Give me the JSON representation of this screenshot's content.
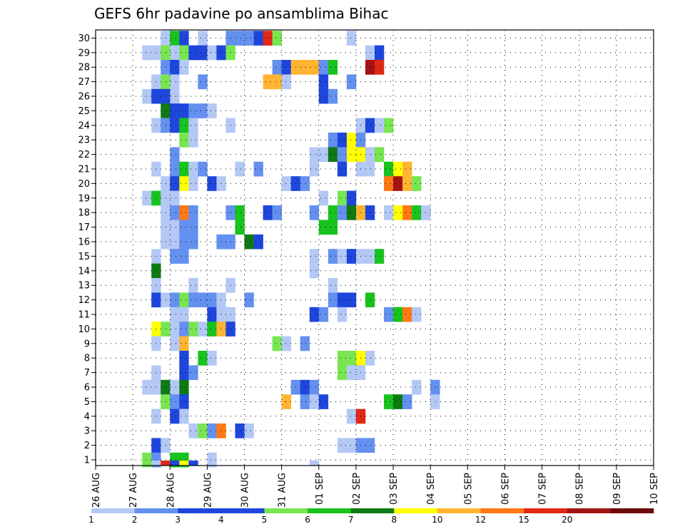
{
  "chart_data": {
    "type": "heatmap",
    "title": "GEFS 6hr padavine po ansamblima Bihac",
    "xlabel": "",
    "ylabel": "",
    "x_start": "26 AUG 00Z",
    "x_step_hours": 6,
    "x_tick_labels": [
      "26 AUG",
      "27 AUG",
      "28 AUG",
      "29 AUG",
      "30 AUG",
      "31 AUG",
      "01 SEP",
      "02 SEP",
      "03 SEP",
      "04 SEP",
      "05 SEP",
      "06 SEP",
      "07 SEP",
      "08 SEP",
      "09 SEP",
      "10 SEP"
    ],
    "y_tick_labels": [
      "1",
      "2",
      "3",
      "4",
      "5",
      "6",
      "7",
      "8",
      "9",
      "10",
      "11",
      "12",
      "13",
      "14",
      "15",
      "16",
      "17",
      "18",
      "19",
      "20",
      "21",
      "22",
      "23",
      "24",
      "25",
      "26",
      "27",
      "28",
      "29",
      "30"
    ],
    "grid": "dotted",
    "colorbar": {
      "labels": [
        "1",
        "2",
        "3",
        "4",
        "5",
        "6",
        "7",
        "8",
        "10",
        "12",
        "15",
        "20"
      ],
      "colors": [
        "#b4c8f5",
        "#6490f0",
        "#1e46dc",
        "#1e46dc",
        "#78e650",
        "#19c31e",
        "#0f7a14",
        "#ffff00",
        "#ffb432",
        "#ff7814",
        "#e12814",
        "#a51414",
        "#6e0a0a"
      ]
    },
    "cells": [
      [
        30,
        7,
        1
      ],
      [
        30,
        8,
        6
      ],
      [
        30,
        9,
        3
      ],
      [
        30,
        11,
        1
      ],
      [
        30,
        14,
        2
      ],
      [
        30,
        15,
        2
      ],
      [
        30,
        16,
        2
      ],
      [
        30,
        17,
        3
      ],
      [
        30,
        18,
        14
      ],
      [
        30,
        19,
        5
      ],
      [
        30,
        27,
        1
      ],
      [
        29,
        5,
        1
      ],
      [
        29,
        6,
        1
      ],
      [
        29,
        7,
        5
      ],
      [
        29,
        8,
        1
      ],
      [
        29,
        9,
        5
      ],
      [
        29,
        10,
        3
      ],
      [
        29,
        11,
        3
      ],
      [
        29,
        12,
        1
      ],
      [
        29,
        13,
        3
      ],
      [
        29,
        14,
        5
      ],
      [
        29,
        29,
        1
      ],
      [
        29,
        30,
        3
      ],
      [
        28,
        7,
        2
      ],
      [
        28,
        8,
        3
      ],
      [
        28,
        9,
        1
      ],
      [
        28,
        19,
        2
      ],
      [
        28,
        20,
        3
      ],
      [
        28,
        21,
        10
      ],
      [
        28,
        22,
        10
      ],
      [
        28,
        23,
        10
      ],
      [
        28,
        24,
        2
      ],
      [
        28,
        25,
        6
      ],
      [
        28,
        29,
        20
      ],
      [
        28,
        30,
        15
      ],
      [
        27,
        6,
        1
      ],
      [
        27,
        7,
        5
      ],
      [
        27,
        8,
        1
      ],
      [
        27,
        11,
        2
      ],
      [
        27,
        18,
        10
      ],
      [
        27,
        19,
        10
      ],
      [
        27,
        20,
        1
      ],
      [
        27,
        24,
        3
      ],
      [
        27,
        27,
        2
      ],
      [
        26,
        5,
        1
      ],
      [
        26,
        6,
        3
      ],
      [
        26,
        7,
        3
      ],
      [
        26,
        8,
        1
      ],
      [
        26,
        24,
        3
      ],
      [
        26,
        25,
        2
      ],
      [
        25,
        7,
        7
      ],
      [
        25,
        8,
        3
      ],
      [
        25,
        9,
        3
      ],
      [
        25,
        10,
        2
      ],
      [
        25,
        11,
        2
      ],
      [
        25,
        12,
        1
      ],
      [
        24,
        6,
        1
      ],
      [
        24,
        7,
        2
      ],
      [
        24,
        8,
        3
      ],
      [
        24,
        9,
        6
      ],
      [
        24,
        10,
        1
      ],
      [
        24,
        14,
        1
      ],
      [
        24,
        28,
        1
      ],
      [
        24,
        29,
        3
      ],
      [
        24,
        30,
        1
      ],
      [
        24,
        31,
        5
      ],
      [
        23,
        9,
        5
      ],
      [
        23,
        10,
        1
      ],
      [
        23,
        25,
        2
      ],
      [
        23,
        26,
        3
      ],
      [
        23,
        27,
        8
      ],
      [
        23,
        28,
        2
      ],
      [
        22,
        8,
        2
      ],
      [
        22,
        23,
        1
      ],
      [
        22,
        24,
        1
      ],
      [
        22,
        25,
        7
      ],
      [
        22,
        26,
        2
      ],
      [
        22,
        27,
        8
      ],
      [
        22,
        28,
        8
      ],
      [
        22,
        29,
        1
      ],
      [
        22,
        30,
        5
      ],
      [
        21,
        6,
        1
      ],
      [
        21,
        8,
        2
      ],
      [
        21,
        9,
        6
      ],
      [
        21,
        10,
        1
      ],
      [
        21,
        11,
        2
      ],
      [
        21,
        15,
        1
      ],
      [
        21,
        17,
        2
      ],
      [
        21,
        23,
        1
      ],
      [
        21,
        26,
        3
      ],
      [
        21,
        28,
        1
      ],
      [
        21,
        29,
        1
      ],
      [
        21,
        31,
        6
      ],
      [
        21,
        32,
        8
      ],
      [
        21,
        33,
        10
      ],
      [
        20,
        7,
        1
      ],
      [
        20,
        8,
        3
      ],
      [
        20,
        9,
        8
      ],
      [
        20,
        10,
        1
      ],
      [
        20,
        12,
        3
      ],
      [
        20,
        13,
        1
      ],
      [
        20,
        20,
        1
      ],
      [
        20,
        21,
        3
      ],
      [
        20,
        22,
        2
      ],
      [
        20,
        31,
        12
      ],
      [
        20,
        32,
        20
      ],
      [
        20,
        33,
        10
      ],
      [
        20,
        34,
        5
      ],
      [
        19,
        5,
        1
      ],
      [
        19,
        6,
        6
      ],
      [
        19,
        7,
        1
      ],
      [
        19,
        8,
        1
      ],
      [
        19,
        24,
        1
      ],
      [
        19,
        26,
        5
      ],
      [
        19,
        27,
        3
      ],
      [
        18,
        7,
        1
      ],
      [
        18,
        8,
        2
      ],
      [
        18,
        9,
        12
      ],
      [
        18,
        10,
        2
      ],
      [
        18,
        14,
        2
      ],
      [
        18,
        15,
        6
      ],
      [
        18,
        18,
        3
      ],
      [
        18,
        19,
        2
      ],
      [
        18,
        23,
        2
      ],
      [
        18,
        25,
        6
      ],
      [
        18,
        26,
        2
      ],
      [
        18,
        27,
        7
      ],
      [
        18,
        28,
        10
      ],
      [
        18,
        29,
        3
      ],
      [
        18,
        31,
        1
      ],
      [
        18,
        32,
        8
      ],
      [
        18,
        33,
        12
      ],
      [
        18,
        34,
        6
      ],
      [
        18,
        35,
        1
      ],
      [
        17,
        7,
        1
      ],
      [
        17,
        8,
        1
      ],
      [
        17,
        9,
        2
      ],
      [
        17,
        10,
        2
      ],
      [
        17,
        15,
        6
      ],
      [
        17,
        24,
        6
      ],
      [
        17,
        25,
        6
      ],
      [
        16,
        7,
        1
      ],
      [
        16,
        8,
        1
      ],
      [
        16,
        9,
        2
      ],
      [
        16,
        10,
        2
      ],
      [
        16,
        13,
        2
      ],
      [
        16,
        14,
        2
      ],
      [
        16,
        16,
        7
      ],
      [
        16,
        17,
        3
      ],
      [
        15,
        6,
        1
      ],
      [
        15,
        8,
        2
      ],
      [
        15,
        9,
        2
      ],
      [
        15,
        23,
        1
      ],
      [
        15,
        25,
        2
      ],
      [
        15,
        26,
        1
      ],
      [
        15,
        27,
        3
      ],
      [
        15,
        28,
        1
      ],
      [
        15,
        29,
        1
      ],
      [
        15,
        30,
        6
      ],
      [
        14,
        6,
        7
      ],
      [
        14,
        23,
        1
      ],
      [
        13,
        6,
        1
      ],
      [
        13,
        10,
        1
      ],
      [
        13,
        14,
        1
      ],
      [
        13,
        25,
        1
      ],
      [
        12,
        6,
        3
      ],
      [
        12,
        7,
        1
      ],
      [
        12,
        8,
        2
      ],
      [
        12,
        9,
        5
      ],
      [
        12,
        10,
        2
      ],
      [
        12,
        11,
        2
      ],
      [
        12,
        12,
        2
      ],
      [
        12,
        13,
        1
      ],
      [
        12,
        16,
        2
      ],
      [
        12,
        25,
        2
      ],
      [
        12,
        26,
        3
      ],
      [
        12,
        27,
        3
      ],
      [
        12,
        29,
        6
      ],
      [
        11,
        8,
        1
      ],
      [
        11,
        9,
        1
      ],
      [
        11,
        12,
        3
      ],
      [
        11,
        13,
        1
      ],
      [
        11,
        14,
        1
      ],
      [
        11,
        23,
        3
      ],
      [
        11,
        24,
        2
      ],
      [
        11,
        26,
        1
      ],
      [
        11,
        31,
        2
      ],
      [
        11,
        32,
        6
      ],
      [
        11,
        33,
        12
      ],
      [
        11,
        34,
        1
      ],
      [
        10,
        6,
        8
      ],
      [
        10,
        7,
        5
      ],
      [
        10,
        8,
        1
      ],
      [
        10,
        9,
        2
      ],
      [
        10,
        10,
        5
      ],
      [
        10,
        11,
        1
      ],
      [
        10,
        12,
        6
      ],
      [
        10,
        13,
        10
      ],
      [
        10,
        14,
        3
      ],
      [
        9,
        6,
        1
      ],
      [
        9,
        8,
        1
      ],
      [
        9,
        9,
        10
      ],
      [
        9,
        19,
        5
      ],
      [
        9,
        20,
        1
      ],
      [
        9,
        22,
        2
      ],
      [
        8,
        9,
        3
      ],
      [
        8,
        11,
        6
      ],
      [
        8,
        12,
        1
      ],
      [
        8,
        26,
        5
      ],
      [
        8,
        27,
        5
      ],
      [
        8,
        28,
        8
      ],
      [
        8,
        29,
        1
      ],
      [
        7,
        6,
        1
      ],
      [
        7,
        9,
        3
      ],
      [
        7,
        10,
        2
      ],
      [
        7,
        26,
        5
      ],
      [
        7,
        27,
        1
      ],
      [
        7,
        28,
        1
      ],
      [
        6,
        5,
        1
      ],
      [
        6,
        6,
        1
      ],
      [
        6,
        7,
        7
      ],
      [
        6,
        8,
        1
      ],
      [
        6,
        9,
        7
      ],
      [
        6,
        21,
        2
      ],
      [
        6,
        22,
        3
      ],
      [
        6,
        23,
        2
      ],
      [
        6,
        34,
        1
      ],
      [
        6,
        36,
        2
      ],
      [
        5,
        7,
        5
      ],
      [
        5,
        8,
        2
      ],
      [
        5,
        9,
        3
      ],
      [
        5,
        20,
        10
      ],
      [
        5,
        22,
        2
      ],
      [
        5,
        23,
        1
      ],
      [
        5,
        24,
        3
      ],
      [
        5,
        31,
        6
      ],
      [
        5,
        32,
        7
      ],
      [
        5,
        33,
        2
      ],
      [
        5,
        36,
        1
      ],
      [
        4,
        6,
        1
      ],
      [
        4,
        8,
        3
      ],
      [
        4,
        9,
        1
      ],
      [
        4,
        27,
        1
      ],
      [
        4,
        28,
        15
      ],
      [
        3,
        10,
        1
      ],
      [
        3,
        11,
        5
      ],
      [
        3,
        12,
        2
      ],
      [
        3,
        13,
        12
      ],
      [
        3,
        15,
        3
      ],
      [
        3,
        16,
        1
      ],
      [
        2,
        6,
        3
      ],
      [
        2,
        7,
        1
      ],
      [
        2,
        26,
        1
      ],
      [
        2,
        27,
        1
      ],
      [
        2,
        28,
        2
      ],
      [
        2,
        29,
        2
      ],
      [
        1,
        5,
        5
      ],
      [
        1,
        6,
        2
      ],
      [
        1,
        8,
        6
      ],
      [
        1,
        9,
        6
      ],
      [
        1,
        12,
        1
      ]
    ],
    "bottom_sliver": [
      [
        6,
        1
      ],
      [
        7,
        15
      ],
      [
        8,
        3
      ],
      [
        9,
        8
      ],
      [
        10,
        3
      ],
      [
        23,
        1
      ]
    ]
  }
}
